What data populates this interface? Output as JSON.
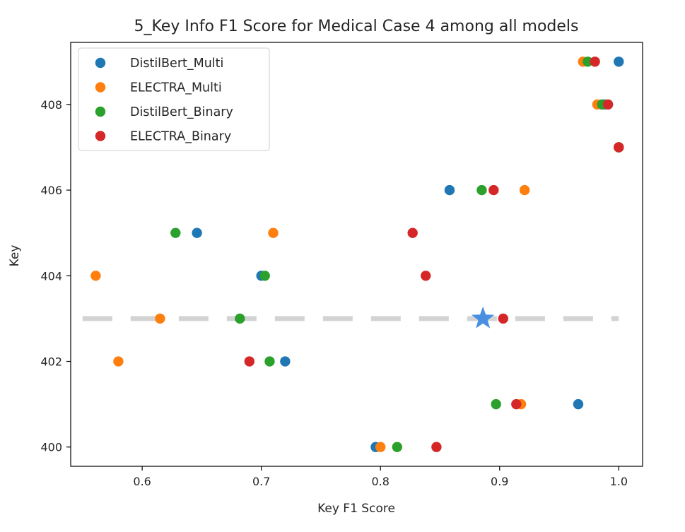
{
  "chart_data": {
    "type": "scatter",
    "title": "5_Key Info F1 Score for Medical Case 4 among all models",
    "xlabel": "Key F1 Score",
    "ylabel": "Key",
    "xlim": [
      0.54,
      1.02
    ],
    "ylim": [
      399.55,
      409.45
    ],
    "xticks": [
      0.6,
      0.7,
      0.8,
      0.9,
      1.0
    ],
    "xtick_labels": [
      "0.6",
      "0.7",
      "0.8",
      "0.9",
      "1.0"
    ],
    "yticks": [
      400,
      402,
      404,
      406,
      408
    ],
    "ytick_labels": [
      "400",
      "402",
      "404",
      "406",
      "408"
    ],
    "grid": false,
    "legend_position": "top-left",
    "series": [
      {
        "name": "DistilBert_Multi",
        "color": "#1f77b4",
        "points": [
          [
            1.0,
            409
          ],
          [
            0.988,
            408
          ],
          [
            1.0,
            407
          ],
          [
            0.858,
            406
          ],
          [
            0.646,
            405
          ],
          [
            0.7,
            404
          ],
          [
            0.72,
            402
          ],
          [
            0.966,
            401
          ],
          [
            0.796,
            400
          ]
        ]
      },
      {
        "name": "ELECTRA_Multi",
        "color": "#ff7f0e",
        "points": [
          [
            0.97,
            409
          ],
          [
            0.982,
            408
          ],
          [
            1.0,
            407
          ],
          [
            0.921,
            406
          ],
          [
            0.71,
            405
          ],
          [
            0.561,
            404
          ],
          [
            0.615,
            403
          ],
          [
            0.58,
            402
          ],
          [
            0.918,
            401
          ],
          [
            0.8,
            400
          ]
        ]
      },
      {
        "name": "DistilBert_Binary",
        "color": "#2ca02c",
        "points": [
          [
            0.974,
            409
          ],
          [
            0.986,
            408
          ],
          [
            1.0,
            407
          ],
          [
            0.885,
            406
          ],
          [
            0.628,
            405
          ],
          [
            0.703,
            404
          ],
          [
            0.682,
            403
          ],
          [
            0.707,
            402
          ],
          [
            0.897,
            401
          ],
          [
            0.814,
            400
          ]
        ]
      },
      {
        "name": "ELECTRA_Binary",
        "color": "#d62728",
        "points": [
          [
            0.98,
            409
          ],
          [
            0.991,
            408
          ],
          [
            1.0,
            407
          ],
          [
            0.895,
            406
          ],
          [
            0.827,
            405
          ],
          [
            0.838,
            404
          ],
          [
            0.903,
            403
          ],
          [
            0.69,
            402
          ],
          [
            0.914,
            401
          ],
          [
            0.847,
            400
          ]
        ]
      }
    ],
    "reference_line": {
      "y": 403,
      "x_range": [
        0.55,
        1.0
      ],
      "style": "dashed",
      "color": "#d3d3d3"
    },
    "star_marker": {
      "x": 0.886,
      "y": 403,
      "color": "#4a90e2"
    }
  }
}
